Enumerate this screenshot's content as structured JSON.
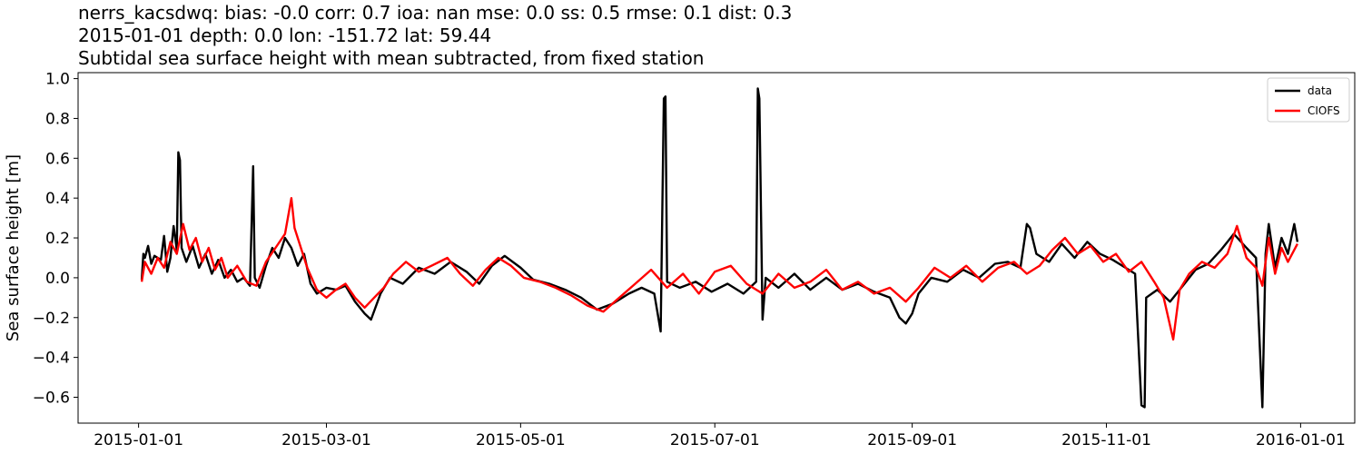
{
  "chart_data": {
    "type": "line",
    "title_lines": [
      "nerrs_kacsdwq: bias: -0.0  corr: 0.7  ioa: nan  mse: 0.0  ss: 0.5  rmse: 0.1  dist: 0.3",
      "2015-01-01 depth: 0.0 lon: -151.72 lat: 59.44",
      "Subtidal sea surface height with mean subtracted, from fixed station"
    ],
    "xlabel": "",
    "ylabel": "Sea surface height [m]",
    "xlim": [
      "2014-12-13",
      "2016-01-18"
    ],
    "ylim": [
      -0.73,
      1.03
    ],
    "yticks": [
      -0.6,
      -0.4,
      -0.2,
      0.0,
      0.2,
      0.4,
      0.6,
      0.8,
      1.0
    ],
    "ytick_labels": [
      "−0.6",
      "−0.4",
      "−0.2",
      "0.0",
      "0.2",
      "0.4",
      "0.6",
      "0.8",
      "1.0"
    ],
    "xticks": [
      "2015-01-01",
      "2015-03-01",
      "2015-05-01",
      "2015-07-01",
      "2015-09-01",
      "2015-11-01",
      "2016-01-01"
    ],
    "grid": false,
    "legend_position": "top-right",
    "series": [
      {
        "name": "data",
        "color": "#000000",
        "points": [
          [
            "2015-01-02",
            -0.01
          ],
          [
            "2015-01-02T12:00",
            0.12
          ],
          [
            "2015-01-03",
            0.1
          ],
          [
            "2015-01-04",
            0.16
          ],
          [
            "2015-01-05",
            0.07
          ],
          [
            "2015-01-06",
            0.11
          ],
          [
            "2015-01-08",
            0.09
          ],
          [
            "2015-01-09",
            0.21
          ],
          [
            "2015-01-10",
            0.03
          ],
          [
            "2015-01-11",
            0.1
          ],
          [
            "2015-01-12",
            0.26
          ],
          [
            "2015-01-13",
            0.14
          ],
          [
            "2015-01-13T12:00",
            0.63
          ],
          [
            "2015-01-14",
            0.59
          ],
          [
            "2015-01-14T12:00",
            0.15
          ],
          [
            "2015-01-16",
            0.08
          ],
          [
            "2015-01-18",
            0.16
          ],
          [
            "2015-01-20",
            0.05
          ],
          [
            "2015-01-22",
            0.12
          ],
          [
            "2015-01-24",
            0.02
          ],
          [
            "2015-01-26",
            0.09
          ],
          [
            "2015-01-28",
            0.0
          ],
          [
            "2015-01-30",
            0.04
          ],
          [
            "2015-02-01",
            -0.02
          ],
          [
            "2015-02-03",
            0.0
          ],
          [
            "2015-02-05",
            -0.04
          ],
          [
            "2015-02-06",
            0.56
          ],
          [
            "2015-02-06T12:00",
            0.0
          ],
          [
            "2015-02-08",
            -0.05
          ],
          [
            "2015-02-10",
            0.06
          ],
          [
            "2015-02-12",
            0.15
          ],
          [
            "2015-02-14",
            0.1
          ],
          [
            "2015-02-16",
            0.2
          ],
          [
            "2015-02-18",
            0.15
          ],
          [
            "2015-02-20",
            0.06
          ],
          [
            "2015-02-22",
            0.12
          ],
          [
            "2015-02-24",
            -0.03
          ],
          [
            "2015-02-26",
            -0.08
          ],
          [
            "2015-03-01",
            -0.05
          ],
          [
            "2015-03-04",
            -0.06
          ],
          [
            "2015-03-07",
            -0.04
          ],
          [
            "2015-03-10",
            -0.12
          ],
          [
            "2015-03-13",
            -0.18
          ],
          [
            "2015-03-15",
            -0.21
          ],
          [
            "2015-03-18",
            -0.08
          ],
          [
            "2015-03-21",
            0.0
          ],
          [
            "2015-03-25",
            -0.03
          ],
          [
            "2015-03-30",
            0.05
          ],
          [
            "2015-04-04",
            0.02
          ],
          [
            "2015-04-09",
            0.08
          ],
          [
            "2015-04-14",
            0.03
          ],
          [
            "2015-04-18",
            -0.03
          ],
          [
            "2015-04-22",
            0.06
          ],
          [
            "2015-04-26",
            0.11
          ],
          [
            "2015-05-01",
            0.05
          ],
          [
            "2015-05-05",
            -0.01
          ],
          [
            "2015-05-10",
            -0.03
          ],
          [
            "2015-05-15",
            -0.06
          ],
          [
            "2015-05-20",
            -0.1
          ],
          [
            "2015-05-25",
            -0.16
          ],
          [
            "2015-05-30",
            -0.13
          ],
          [
            "2015-06-04",
            -0.08
          ],
          [
            "2015-06-08",
            -0.05
          ],
          [
            "2015-06-12",
            -0.08
          ],
          [
            "2015-06-14",
            -0.27
          ],
          [
            "2015-06-15",
            0.9
          ],
          [
            "2015-06-15T12:00",
            0.91
          ],
          [
            "2015-06-16",
            -0.02
          ],
          [
            "2015-06-20",
            -0.05
          ],
          [
            "2015-06-25",
            -0.02
          ],
          [
            "2015-06-30",
            -0.07
          ],
          [
            "2015-07-05",
            -0.03
          ],
          [
            "2015-07-10",
            -0.08
          ],
          [
            "2015-07-14",
            -0.02
          ],
          [
            "2015-07-14T12:00",
            0.95
          ],
          [
            "2015-07-15",
            0.9
          ],
          [
            "2015-07-16",
            -0.21
          ],
          [
            "2015-07-17",
            0.0
          ],
          [
            "2015-07-21",
            -0.05
          ],
          [
            "2015-07-26",
            0.02
          ],
          [
            "2015-07-31",
            -0.06
          ],
          [
            "2015-08-05",
            0.0
          ],
          [
            "2015-08-10",
            -0.06
          ],
          [
            "2015-08-15",
            -0.03
          ],
          [
            "2015-08-20",
            -0.07
          ],
          [
            "2015-08-25",
            -0.1
          ],
          [
            "2015-08-28",
            -0.2
          ],
          [
            "2015-08-30",
            -0.23
          ],
          [
            "2015-09-01",
            -0.18
          ],
          [
            "2015-09-03",
            -0.08
          ],
          [
            "2015-09-07",
            0.0
          ],
          [
            "2015-09-12",
            -0.02
          ],
          [
            "2015-09-17",
            0.04
          ],
          [
            "2015-09-22",
            0.0
          ],
          [
            "2015-09-27",
            0.07
          ],
          [
            "2015-10-01",
            0.08
          ],
          [
            "2015-10-05",
            0.05
          ],
          [
            "2015-10-07",
            0.27
          ],
          [
            "2015-10-08",
            0.25
          ],
          [
            "2015-10-10",
            0.12
          ],
          [
            "2015-10-14",
            0.08
          ],
          [
            "2015-10-18",
            0.17
          ],
          [
            "2015-10-22",
            0.1
          ],
          [
            "2015-10-26",
            0.18
          ],
          [
            "2015-10-30",
            0.12
          ],
          [
            "2015-11-03",
            0.09
          ],
          [
            "2015-11-07",
            0.05
          ],
          [
            "2015-11-10",
            0.02
          ],
          [
            "2015-11-12",
            -0.64
          ],
          [
            "2015-11-13",
            -0.65
          ],
          [
            "2015-11-13T12:00",
            -0.1
          ],
          [
            "2015-11-17",
            -0.06
          ],
          [
            "2015-11-21",
            -0.12
          ],
          [
            "2015-11-25",
            -0.04
          ],
          [
            "2015-11-29",
            0.04
          ],
          [
            "2015-12-03",
            0.07
          ],
          [
            "2015-12-07",
            0.14
          ],
          [
            "2015-12-11",
            0.22
          ],
          [
            "2015-12-15",
            0.15
          ],
          [
            "2015-12-18",
            0.1
          ],
          [
            "2015-12-20",
            -0.65
          ],
          [
            "2015-12-21",
            0.12
          ],
          [
            "2015-12-22",
            0.27
          ],
          [
            "2015-12-24",
            0.05
          ],
          [
            "2015-12-26",
            0.2
          ],
          [
            "2015-12-28",
            0.12
          ],
          [
            "2015-12-30",
            0.27
          ],
          [
            "2015-12-31",
            0.18
          ]
        ]
      },
      {
        "name": "CIOFS",
        "color": "#ff0000",
        "points": [
          [
            "2015-01-02",
            -0.02
          ],
          [
            "2015-01-03",
            0.08
          ],
          [
            "2015-01-05",
            0.02
          ],
          [
            "2015-01-07",
            0.1
          ],
          [
            "2015-01-09",
            0.05
          ],
          [
            "2015-01-11",
            0.18
          ],
          [
            "2015-01-13",
            0.12
          ],
          [
            "2015-01-15",
            0.27
          ],
          [
            "2015-01-17",
            0.14
          ],
          [
            "2015-01-19",
            0.2
          ],
          [
            "2015-01-21",
            0.08
          ],
          [
            "2015-01-23",
            0.15
          ],
          [
            "2015-01-25",
            0.04
          ],
          [
            "2015-01-27",
            0.1
          ],
          [
            "2015-01-29",
            0.0
          ],
          [
            "2015-02-01",
            0.06
          ],
          [
            "2015-02-04",
            -0.02
          ],
          [
            "2015-02-07",
            -0.04
          ],
          [
            "2015-02-10",
            0.08
          ],
          [
            "2015-02-13",
            0.15
          ],
          [
            "2015-02-16",
            0.22
          ],
          [
            "2015-02-18",
            0.4
          ],
          [
            "2015-02-19",
            0.25
          ],
          [
            "2015-02-21",
            0.15
          ],
          [
            "2015-02-23",
            0.05
          ],
          [
            "2015-02-26",
            -0.06
          ],
          [
            "2015-03-01",
            -0.1
          ],
          [
            "2015-03-04",
            -0.06
          ],
          [
            "2015-03-07",
            -0.03
          ],
          [
            "2015-03-10",
            -0.1
          ],
          [
            "2015-03-13",
            -0.15
          ],
          [
            "2015-03-16",
            -0.1
          ],
          [
            "2015-03-19",
            -0.05
          ],
          [
            "2015-03-22",
            0.02
          ],
          [
            "2015-03-26",
            0.08
          ],
          [
            "2015-03-30",
            0.03
          ],
          [
            "2015-04-03",
            0.06
          ],
          [
            "2015-04-08",
            0.1
          ],
          [
            "2015-04-12",
            0.02
          ],
          [
            "2015-04-16",
            -0.04
          ],
          [
            "2015-04-20",
            0.04
          ],
          [
            "2015-04-24",
            0.1
          ],
          [
            "2015-04-28",
            0.06
          ],
          [
            "2015-05-02",
            0.0
          ],
          [
            "2015-05-07",
            -0.02
          ],
          [
            "2015-05-12",
            -0.05
          ],
          [
            "2015-05-17",
            -0.09
          ],
          [
            "2015-05-22",
            -0.14
          ],
          [
            "2015-05-27",
            -0.17
          ],
          [
            "2015-06-01",
            -0.1
          ],
          [
            "2015-06-06",
            -0.03
          ],
          [
            "2015-06-11",
            0.04
          ],
          [
            "2015-06-16",
            -0.05
          ],
          [
            "2015-06-21",
            0.02
          ],
          [
            "2015-06-26",
            -0.08
          ],
          [
            "2015-07-01",
            0.03
          ],
          [
            "2015-07-06",
            0.06
          ],
          [
            "2015-07-11",
            -0.03
          ],
          [
            "2015-07-16",
            -0.08
          ],
          [
            "2015-07-21",
            0.02
          ],
          [
            "2015-07-26",
            -0.05
          ],
          [
            "2015-07-31",
            -0.02
          ],
          [
            "2015-08-05",
            0.04
          ],
          [
            "2015-08-10",
            -0.06
          ],
          [
            "2015-08-15",
            -0.02
          ],
          [
            "2015-08-20",
            -0.08
          ],
          [
            "2015-08-25",
            -0.05
          ],
          [
            "2015-08-30",
            -0.12
          ],
          [
            "2015-09-03",
            -0.05
          ],
          [
            "2015-09-08",
            0.05
          ],
          [
            "2015-09-13",
            0.0
          ],
          [
            "2015-09-18",
            0.06
          ],
          [
            "2015-09-23",
            -0.02
          ],
          [
            "2015-09-28",
            0.05
          ],
          [
            "2015-10-03",
            0.08
          ],
          [
            "2015-10-07",
            0.02
          ],
          [
            "2015-10-11",
            0.06
          ],
          [
            "2015-10-15",
            0.14
          ],
          [
            "2015-10-19",
            0.2
          ],
          [
            "2015-10-23",
            0.12
          ],
          [
            "2015-10-27",
            0.16
          ],
          [
            "2015-10-31",
            0.08
          ],
          [
            "2015-11-04",
            0.12
          ],
          [
            "2015-11-08",
            0.03
          ],
          [
            "2015-11-12",
            0.08
          ],
          [
            "2015-11-16",
            -0.02
          ],
          [
            "2015-11-19",
            -0.1
          ],
          [
            "2015-11-22",
            -0.31
          ],
          [
            "2015-11-24",
            -0.06
          ],
          [
            "2015-11-27",
            0.02
          ],
          [
            "2015-12-01",
            0.08
          ],
          [
            "2015-12-05",
            0.05
          ],
          [
            "2015-12-09",
            0.12
          ],
          [
            "2015-12-12",
            0.26
          ],
          [
            "2015-12-15",
            0.1
          ],
          [
            "2015-12-18",
            0.05
          ],
          [
            "2015-12-20",
            -0.04
          ],
          [
            "2015-12-22",
            0.2
          ],
          [
            "2015-12-24",
            0.02
          ],
          [
            "2015-12-26",
            0.15
          ],
          [
            "2015-12-28",
            0.08
          ],
          [
            "2015-12-31",
            0.17
          ]
        ]
      }
    ]
  }
}
